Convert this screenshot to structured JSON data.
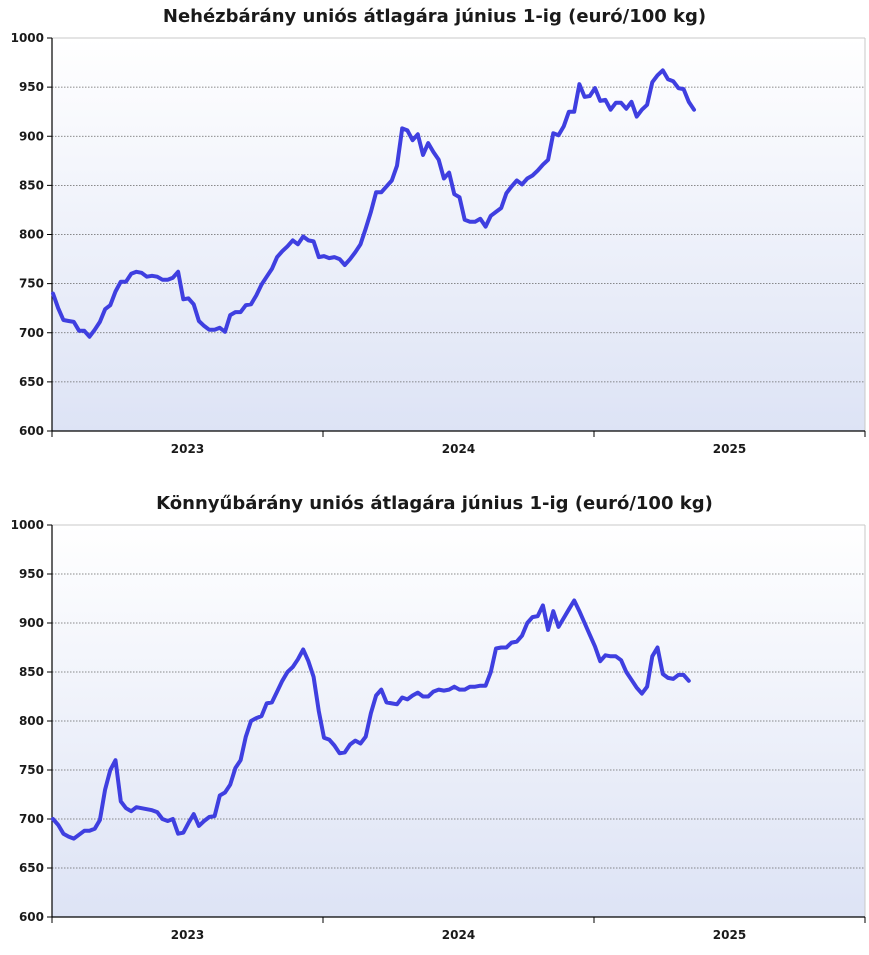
{
  "chart_data": [
    {
      "type": "line",
      "title": "Nehézbárány uniós átlagára június 1-ig (euró/100 kg)",
      "xlabel": "",
      "ylabel": "",
      "ylim": [
        600,
        1000
      ],
      "yticks": [
        600,
        650,
        700,
        750,
        800,
        850,
        900,
        950,
        1000
      ],
      "xticks": [
        "2023",
        "2024",
        "2025"
      ],
      "grid": true,
      "colors": {
        "line": "#3f3fe0",
        "grid": "#666666",
        "axis": "#000000",
        "bg_top": "#ffffff",
        "bg_bottom": "#dde3f5"
      },
      "series": [
        {
          "values": [
            740,
            725,
            713,
            712,
            711,
            702,
            702,
            696,
            703,
            711,
            724,
            728,
            742,
            752,
            752,
            760,
            762,
            761,
            757,
            758,
            757,
            754,
            754,
            756,
            762,
            734,
            735,
            729,
            712,
            707,
            703,
            703,
            705,
            701,
            718,
            721,
            721,
            728,
            729,
            738,
            749,
            757,
            765,
            777,
            783,
            788,
            794,
            790,
            798,
            794,
            793,
            777,
            778,
            776,
            777,
            775,
            769,
            775,
            782,
            790,
            806,
            823,
            843,
            843,
            849,
            855,
            870,
            908,
            906,
            896,
            902,
            881,
            893,
            884,
            876,
            857,
            863,
            841,
            838,
            815,
            813,
            813,
            816,
            808,
            819,
            823,
            827,
            842,
            849,
            855,
            851,
            857,
            860,
            865,
            871,
            876,
            903,
            901,
            910,
            925,
            925,
            953,
            940,
            941,
            949,
            936,
            937,
            927,
            934,
            934,
            928,
            935,
            920,
            927,
            932,
            955,
            962,
            967,
            958,
            956,
            949,
            948,
            935,
            927
          ]
        }
      ]
    },
    {
      "type": "line",
      "title": "Könnyűbárány uniós átlagára június 1-ig (euró/100 kg)",
      "xlabel": "",
      "ylabel": "",
      "ylim": [
        600,
        1000
      ],
      "yticks": [
        600,
        650,
        700,
        750,
        800,
        850,
        900,
        950,
        1000
      ],
      "xticks": [
        "2023",
        "2024",
        "2025"
      ],
      "grid": true,
      "colors": {
        "line": "#3f3fe0",
        "grid": "#666666",
        "axis": "#000000",
        "bg_top": "#ffffff",
        "bg_bottom": "#dde3f5"
      },
      "series": [
        {
          "values": [
            700,
            694,
            685,
            682,
            680,
            684,
            688,
            688,
            690,
            699,
            730,
            750,
            760,
            718,
            711,
            708,
            712,
            711,
            710,
            709,
            707,
            700,
            698,
            700,
            685,
            686,
            696,
            705,
            693,
            698,
            702,
            703,
            724,
            727,
            735,
            752,
            760,
            784,
            800,
            803,
            805,
            818,
            819,
            830,
            841,
            850,
            855,
            863,
            873,
            861,
            845,
            810,
            783,
            781,
            775,
            767,
            768,
            776,
            780,
            777,
            784,
            808,
            826,
            832,
            819,
            818,
            817,
            824,
            822,
            826,
            829,
            825,
            825,
            830,
            832,
            831,
            832,
            835,
            832,
            832,
            835,
            835,
            836,
            836,
            850,
            874,
            875,
            875,
            880,
            881,
            887,
            900,
            906,
            907,
            918,
            893,
            912,
            896,
            905,
            914,
            923,
            912,
            900,
            888,
            876,
            861,
            867,
            866,
            866,
            862,
            850,
            842,
            834,
            828,
            835,
            866,
            875,
            848,
            844,
            843,
            847,
            847,
            841
          ]
        }
      ]
    }
  ]
}
